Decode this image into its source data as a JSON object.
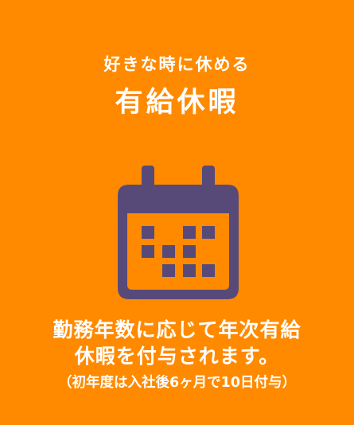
{
  "header": {
    "subtitle": "好きな時に休める",
    "title": "有給休暇"
  },
  "icon": {
    "name": "calendar-icon",
    "color": "#574a79"
  },
  "description": {
    "line1": "勤務年数に応じて年次有給",
    "line2": "休暇を付与されます。",
    "note": "（初年度は入社後6ヶ月で10日付与）"
  },
  "colors": {
    "background": "#ff8a00",
    "text": "#ffffff",
    "icon": "#574a79"
  }
}
